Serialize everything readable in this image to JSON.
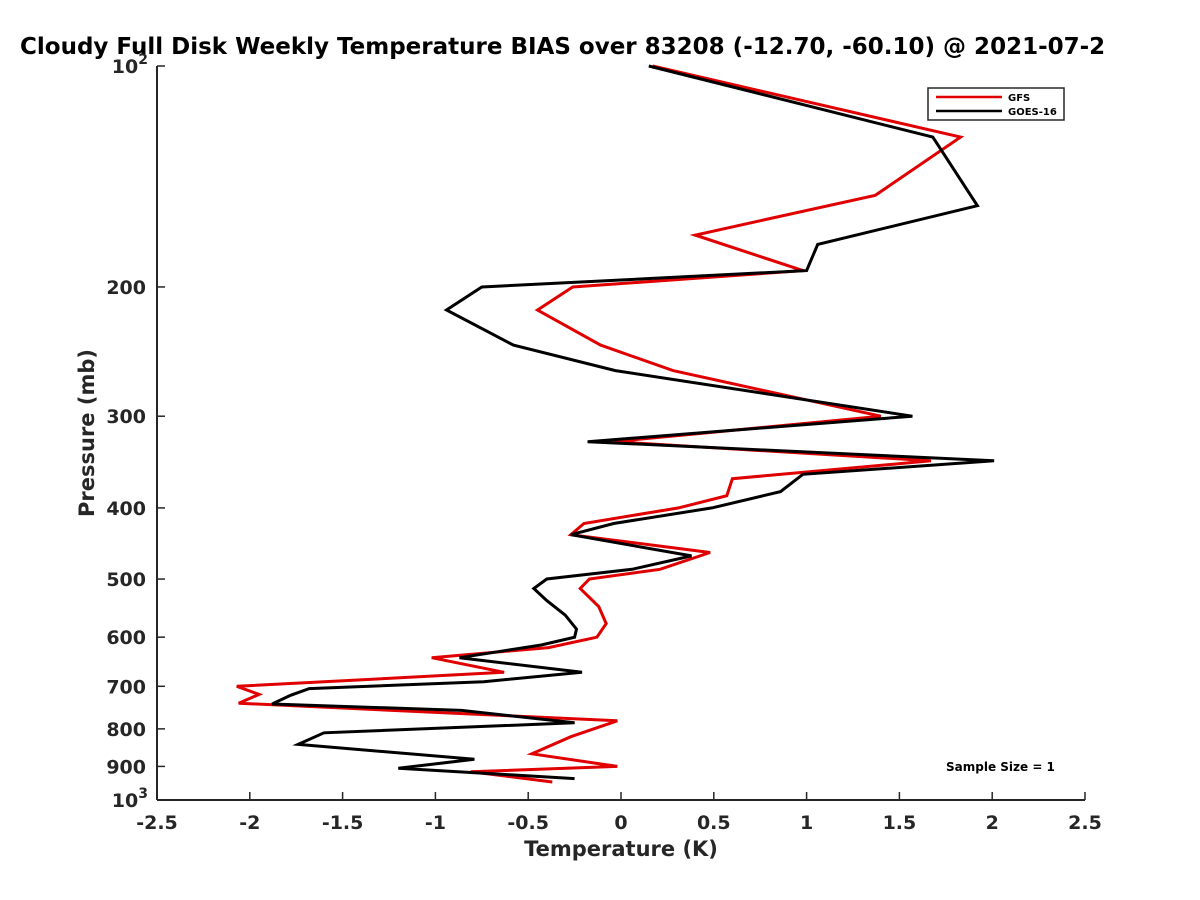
{
  "chart_data": {
    "type": "line",
    "title": "Cloudy Full Disk Weekly Temperature BIAS over 83208 (-12.70, -60.10) @ 2021-07-2",
    "xlabel": "Temperature (K)",
    "ylabel": "Pressure (mb)",
    "xlim": [
      -2.5,
      2.5
    ],
    "ylim": [
      1000,
      100
    ],
    "yscale": "log",
    "x_ticks": [
      {
        "value": -2.5,
        "label": "-2.5"
      },
      {
        "value": -2,
        "label": "-2"
      },
      {
        "value": -1.5,
        "label": "-1.5"
      },
      {
        "value": -1,
        "label": "-1"
      },
      {
        "value": -0.5,
        "label": "-0.5"
      },
      {
        "value": 0,
        "label": "0"
      },
      {
        "value": 0.5,
        "label": "0.5"
      },
      {
        "value": 1,
        "label": "1"
      },
      {
        "value": 1.5,
        "label": "1.5"
      },
      {
        "value": 2,
        "label": "2"
      },
      {
        "value": 2.5,
        "label": "2.5"
      }
    ],
    "y_ticks": [
      {
        "value": 100,
        "base": "10",
        "exp": "2"
      },
      {
        "value": 200,
        "label": "200"
      },
      {
        "value": 300,
        "label": "300"
      },
      {
        "value": 400,
        "label": "400"
      },
      {
        "value": 500,
        "label": "500"
      },
      {
        "value": 600,
        "label": "600"
      },
      {
        "value": 700,
        "label": "700"
      },
      {
        "value": 800,
        "label": "800"
      },
      {
        "value": 900,
        "label": "900"
      },
      {
        "value": 1000,
        "base": "10",
        "exp": "3"
      }
    ],
    "legend_position": "top-right",
    "annotation": "Sample Size = 1",
    "series": [
      {
        "name": "GFS",
        "color": "#e00000",
        "points": [
          [
            0.17,
            100
          ],
          [
            1.83,
            125
          ],
          [
            1.37,
            150
          ],
          [
            0.4,
            170
          ],
          [
            0.98,
            190
          ],
          [
            -0.26,
            200
          ],
          [
            -0.45,
            215
          ],
          [
            -0.11,
            240
          ],
          [
            0.28,
            260
          ],
          [
            1.4,
            300
          ],
          [
            -0.04,
            325
          ],
          [
            1.67,
            345
          ],
          [
            0.6,
            365
          ],
          [
            0.57,
            385
          ],
          [
            0.31,
            400
          ],
          [
            -0.2,
            420
          ],
          [
            -0.27,
            435
          ],
          [
            0.48,
            460
          ],
          [
            0.21,
            485
          ],
          [
            -0.17,
            500
          ],
          [
            -0.22,
            515
          ],
          [
            -0.12,
            545
          ],
          [
            -0.08,
            575
          ],
          [
            -0.13,
            600
          ],
          [
            -0.39,
            620
          ],
          [
            -1.02,
            640
          ],
          [
            -0.63,
            670
          ],
          [
            -2.07,
            700
          ],
          [
            -1.95,
            718
          ],
          [
            -2.06,
            738
          ],
          [
            -0.02,
            780
          ],
          [
            -0.27,
            820
          ],
          [
            -0.48,
            865
          ],
          [
            -0.02,
            900
          ],
          [
            -0.81,
            915
          ],
          [
            -0.37,
            945
          ]
        ]
      },
      {
        "name": "GOES-16",
        "color": "#000000",
        "points": [
          [
            0.15,
            100
          ],
          [
            1.68,
            125
          ],
          [
            1.92,
            155
          ],
          [
            1.06,
            175
          ],
          [
            1.0,
            190
          ],
          [
            -0.75,
            200
          ],
          [
            -0.94,
            215
          ],
          [
            -0.58,
            240
          ],
          [
            -0.03,
            260
          ],
          [
            1.57,
            300
          ],
          [
            -0.18,
            325
          ],
          [
            2.01,
            345
          ],
          [
            0.98,
            360
          ],
          [
            0.86,
            380
          ],
          [
            0.49,
            400
          ],
          [
            -0.04,
            420
          ],
          [
            -0.27,
            435
          ],
          [
            0.38,
            465
          ],
          [
            0.06,
            485
          ],
          [
            -0.4,
            500
          ],
          [
            -0.47,
            515
          ],
          [
            -0.4,
            535
          ],
          [
            -0.3,
            560
          ],
          [
            -0.24,
            585
          ],
          [
            -0.25,
            600
          ],
          [
            -0.43,
            615
          ],
          [
            -0.87,
            640
          ],
          [
            -0.21,
            670
          ],
          [
            -0.74,
            690
          ],
          [
            -1.68,
            705
          ],
          [
            -1.78,
            720
          ],
          [
            -1.88,
            740
          ],
          [
            -0.86,
            755
          ],
          [
            -0.25,
            785
          ],
          [
            -1.6,
            810
          ],
          [
            -1.74,
            840
          ],
          [
            -0.79,
            880
          ],
          [
            -1.2,
            905
          ],
          [
            -0.25,
            935
          ]
        ]
      }
    ]
  }
}
